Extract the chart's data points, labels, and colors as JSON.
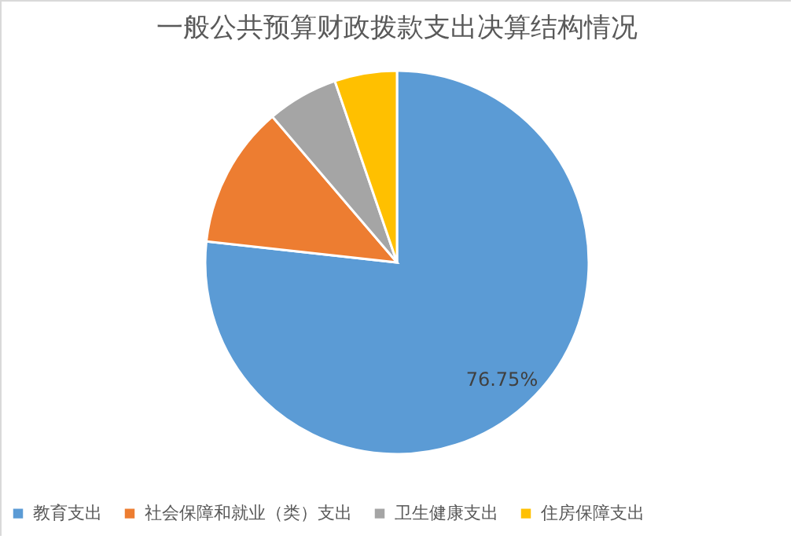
{
  "chart_data": {
    "type": "pie",
    "title": "一般公共预算财政拨款支出决算结构情况",
    "categories": [
      "教育支出",
      "社会保障和就业（类）支出",
      "卫生健康支出",
      "住房保障支出"
    ],
    "values": [
      76.75,
      12,
      6,
      5.25
    ],
    "colors": [
      "#5b9bd5",
      "#ed7d31",
      "#a5a5a5",
      "#ffc000"
    ],
    "value_labels": [
      "76.75%",
      null,
      null,
      null
    ],
    "legend": "bottom"
  }
}
